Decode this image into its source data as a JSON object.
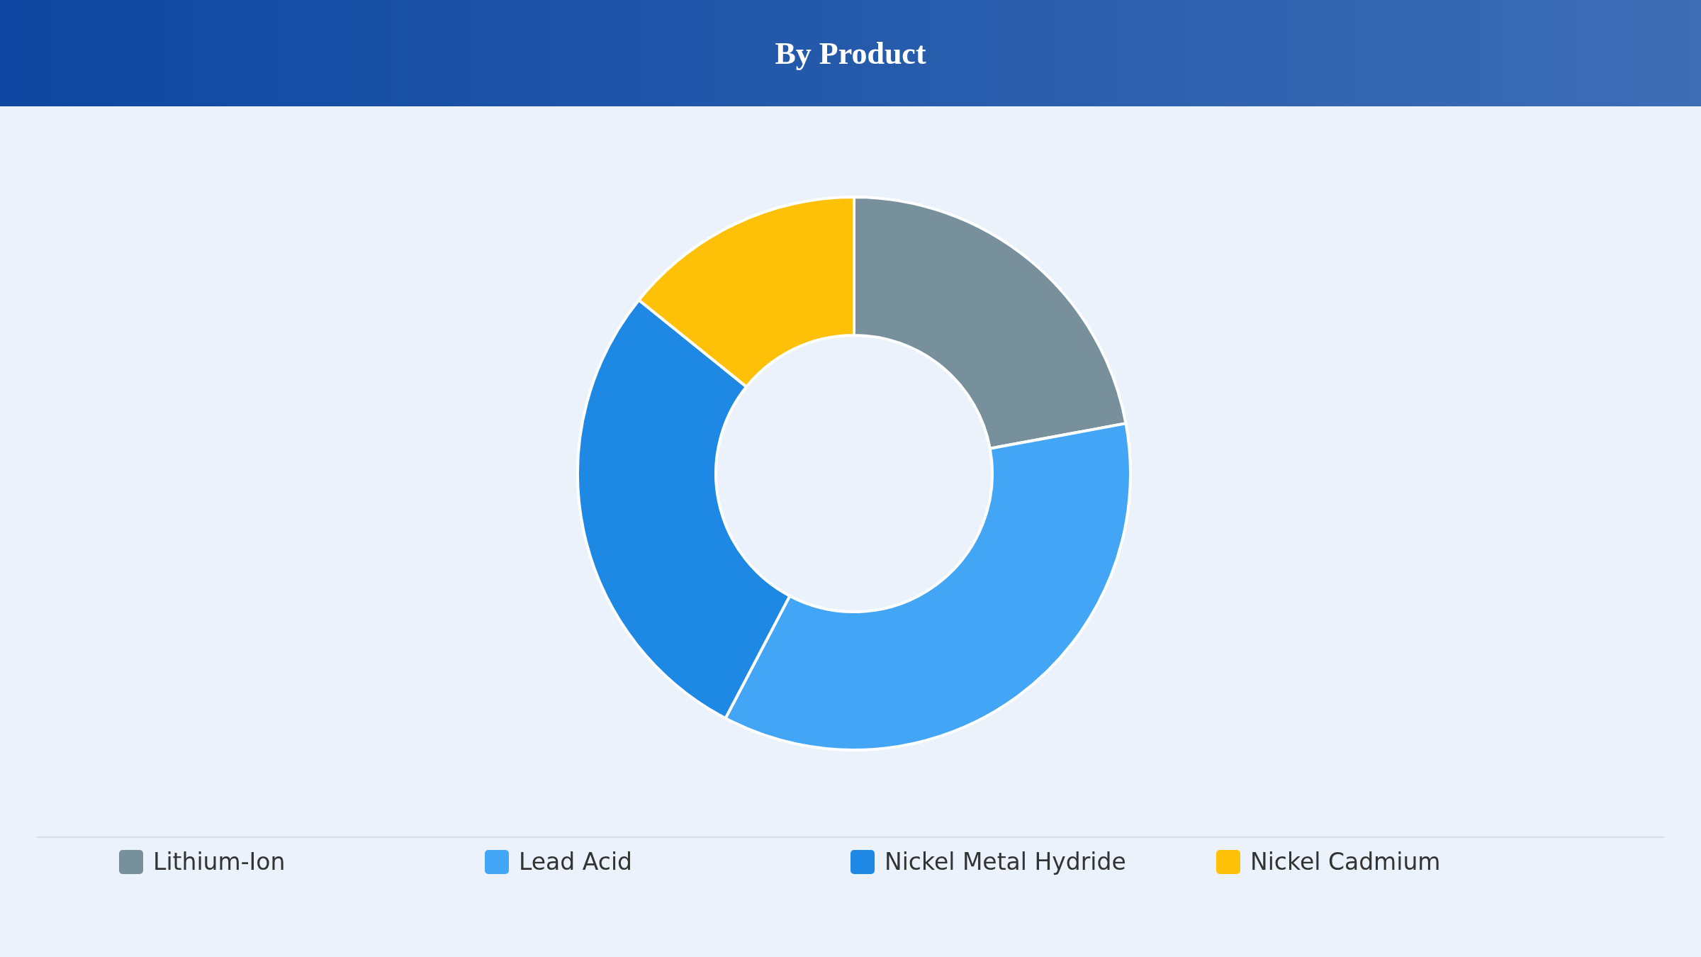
{
  "chart_data": {
    "type": "donut",
    "title": "By Product",
    "categories": [
      "Lithium-Ion",
      "Lead Acid",
      "Nickel Metal Hydride",
      "Nickel Cadmium"
    ],
    "values": [
      22.1,
      35.6,
      28.1,
      14.2
    ],
    "colors": [
      "#78909c",
      "#42a5f5",
      "#1e88e5",
      "#ffc107"
    ],
    "legend": "bottom"
  }
}
